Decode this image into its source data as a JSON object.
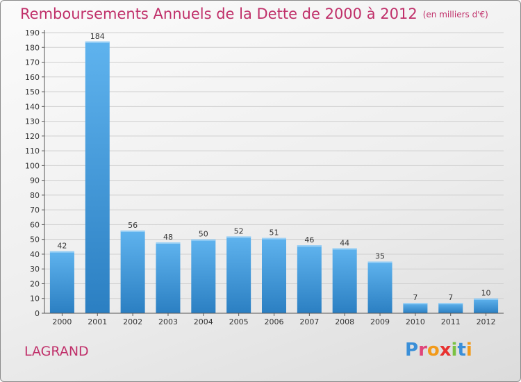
{
  "title": "Remboursements Annuels de la Dette de 2000 à 2012",
  "subtitle": "(en milliers d'€)",
  "commune": "LAGRAND",
  "logo": {
    "letters": [
      "P",
      "r",
      "o",
      "x",
      "i",
      "t",
      "i"
    ],
    "colors": [
      "#3a8fd8",
      "#e0457a",
      "#f29a1a",
      "#e8312f",
      "#7ac142",
      "#3a8fd8",
      "#f29a1a"
    ]
  },
  "colors": {
    "bar": "#3f9be0",
    "bar_top": "#5fb3ee",
    "bar_dark": "#2b7fc2",
    "title": "#c0306a",
    "grid": "#cfcfcf"
  },
  "chart_data": {
    "type": "bar",
    "title": "Remboursements Annuels de la Dette de 2000 à 2012",
    "subtitle": "(en milliers d'€)",
    "categories": [
      "2000",
      "2001",
      "2002",
      "2003",
      "2004",
      "2005",
      "2006",
      "2007",
      "2008",
      "2009",
      "2010",
      "2011",
      "2012"
    ],
    "values": [
      42,
      184,
      56,
      48,
      50,
      52,
      51,
      46,
      44,
      35,
      7,
      7,
      10
    ],
    "ylim": [
      0,
      190
    ],
    "yticks": [
      0,
      10,
      20,
      30,
      40,
      50,
      60,
      70,
      80,
      90,
      100,
      110,
      120,
      130,
      140,
      150,
      160,
      170,
      180,
      190
    ],
    "grid": true,
    "data_labels": true
  }
}
